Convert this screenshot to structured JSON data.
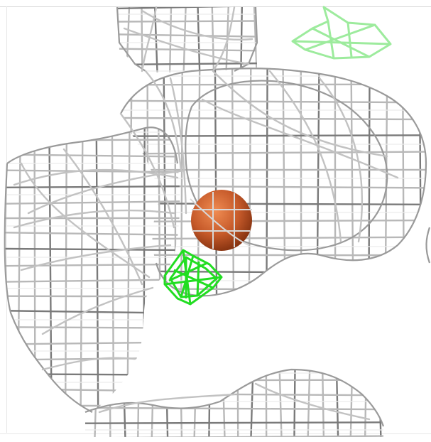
{
  "scene": {
    "type": "electron-density-mesh",
    "colors": {
      "background": "#ffffff",
      "mesh": "#b8b8b8",
      "mesh_highlight": "#ececec",
      "mesh_shadow": "#7a7a7a",
      "atom_sphere": "#c65a2a",
      "atom_sphere_light": "#f08c52",
      "difference_density": "#22dd22",
      "difference_density_faded": "#7fe87f"
    },
    "objects": [
      {
        "name": "grey-density-mesh",
        "kind": "mesh"
      },
      {
        "name": "metal-ion-sphere",
        "kind": "atom"
      },
      {
        "name": "green-difference-map",
        "kind": "mesh"
      },
      {
        "name": "faded-green-difference-map",
        "kind": "mesh"
      }
    ]
  }
}
